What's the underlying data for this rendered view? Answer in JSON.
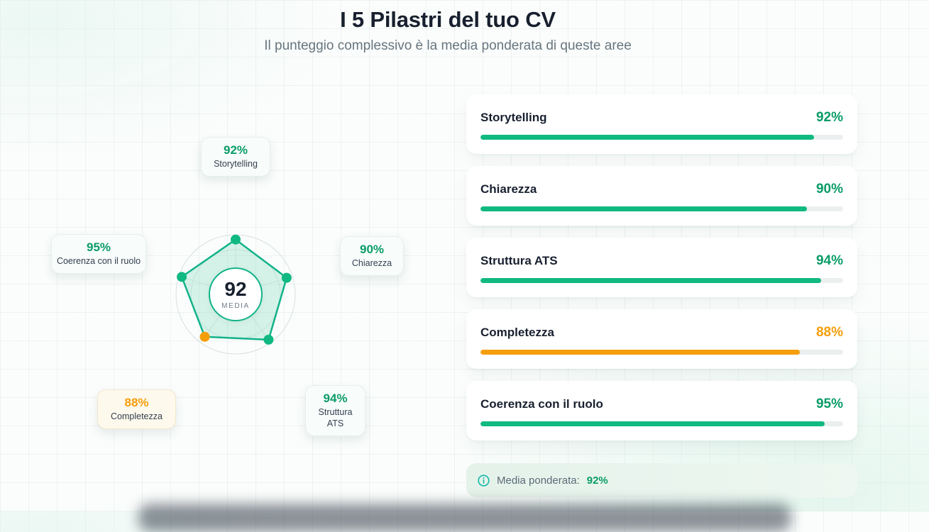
{
  "header": {
    "title": "I 5 Pilastri del tuo CV",
    "subtitle": "Il punteggio complessivo è la media ponderata di queste aree"
  },
  "colors": {
    "green": "#10b981",
    "green_text": "#0a9c68",
    "orange": "#f59e0b",
    "navy": "#18202f",
    "gray": "#64748b",
    "radar_stroke": "#12b389"
  },
  "radar": {
    "center_value": "92",
    "center_label": "MEDIA"
  },
  "pillars": [
    {
      "id": "storytelling",
      "label": "Storytelling",
      "value": 92,
      "display": "92%",
      "color": "green"
    },
    {
      "id": "chiarezza",
      "label": "Chiarezza",
      "value": 90,
      "display": "90%",
      "color": "green"
    },
    {
      "id": "struttura-ats",
      "label": "Struttura ATS",
      "value": 94,
      "display": "94%",
      "color": "green"
    },
    {
      "id": "completezza",
      "label": "Completezza",
      "value": 88,
      "display": "88%",
      "color": "orange"
    },
    {
      "id": "coerenza",
      "label": "Coerenza con il ruolo",
      "value": 95,
      "display": "95%",
      "color": "green"
    }
  ],
  "chart_data": {
    "type": "radar",
    "categories": [
      "Storytelling",
      "Chiarezza",
      "Struttura ATS",
      "Completezza",
      "Coerenza con il ruolo"
    ],
    "values": [
      92,
      90,
      94,
      88,
      95
    ],
    "max": 100,
    "center_value": 92,
    "center_label": "MEDIA",
    "point_colors": [
      "#10b981",
      "#10b981",
      "#10b981",
      "#f59e0b",
      "#10b981"
    ],
    "fill": "rgba(16,185,129,0.16)",
    "grid_rings": 2,
    "title": "I 5 Pilastri del tuo CV"
  },
  "footer": {
    "label": "Media ponderata:",
    "value": "92%"
  }
}
